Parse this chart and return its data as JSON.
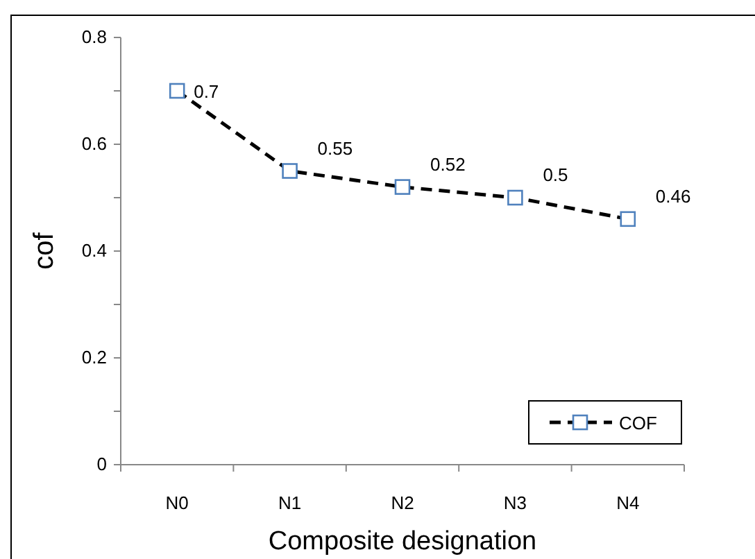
{
  "chart_data": {
    "type": "line",
    "xlabel": "Composite designation",
    "ylabel": "cof",
    "categories": [
      "N0",
      "N1",
      "N2",
      "N3",
      "N4"
    ],
    "series": [
      {
        "name": "COF",
        "color": "#000000",
        "colors": [
          "#4f81bd",
          "#4f81bd",
          "#4f81bd",
          "#4f81bd",
          "#4f81bd"
        ],
        "values": [
          0.7,
          0.55,
          0.52,
          0.5,
          0.46
        ]
      }
    ],
    "ylim": [
      0,
      0.8
    ],
    "yticks": [
      0,
      {
        "value": 0.1,
        "label": null
      },
      0.2,
      {
        "value": 0.3,
        "label": null
      },
      0.4,
      {
        "value": 0.5,
        "label": null
      },
      0.6,
      {
        "value": 0.7,
        "label": null
      },
      0.8
    ],
    "data_labels": true,
    "legend": "bottom right",
    "marker": "square",
    "line_style": "dashed",
    "grid": false
  }
}
